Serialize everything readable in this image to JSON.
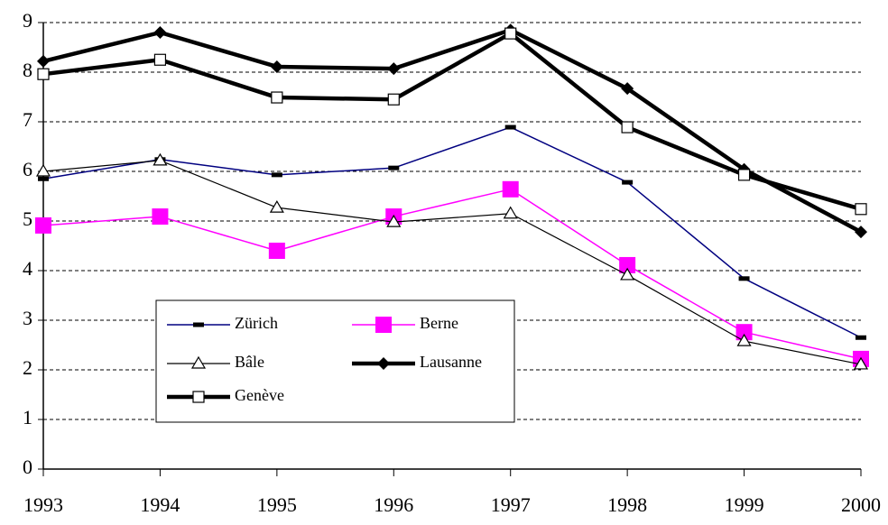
{
  "chart_data": {
    "type": "line",
    "x": [
      1993,
      1994,
      1995,
      1996,
      1997,
      1998,
      1999,
      2000
    ],
    "xlim": [
      1993,
      2000
    ],
    "xticks": [
      1993,
      1994,
      1995,
      1996,
      1997,
      1998,
      1999,
      2000
    ],
    "ylim": [
      0,
      9
    ],
    "yticks": [
      0,
      1,
      2,
      3,
      4,
      5,
      6,
      7,
      8,
      9
    ],
    "grid": true,
    "series": [
      {
        "name": "Zürich",
        "color": "#000080",
        "marker": "dash",
        "line_width": 1.5,
        "values": [
          5.85,
          6.24,
          5.93,
          6.07,
          6.89,
          5.78,
          3.84,
          2.65
        ]
      },
      {
        "name": "Berne",
        "color": "#ff00ff",
        "marker": "square",
        "line_width": 1.5,
        "values": [
          4.91,
          5.09,
          4.4,
          5.09,
          5.64,
          4.11,
          2.76,
          2.22
        ]
      },
      {
        "name": "Bâle",
        "color": "#000000",
        "marker": "triangle",
        "line_width": 1.2,
        "values": [
          6.0,
          6.22,
          5.27,
          4.98,
          5.15,
          3.91,
          2.58,
          2.11
        ]
      },
      {
        "name": "Lausanne",
        "color": "#000000",
        "marker": "diamond",
        "line_width": 4.5,
        "values": [
          8.22,
          8.8,
          8.11,
          8.07,
          8.85,
          7.67,
          6.04,
          4.78
        ]
      },
      {
        "name": "Genève",
        "color": "#000000",
        "marker": "open-square",
        "line_width": 4.5,
        "values": [
          7.96,
          8.25,
          7.49,
          7.45,
          8.78,
          6.89,
          5.93,
          5.24
        ]
      }
    ]
  }
}
